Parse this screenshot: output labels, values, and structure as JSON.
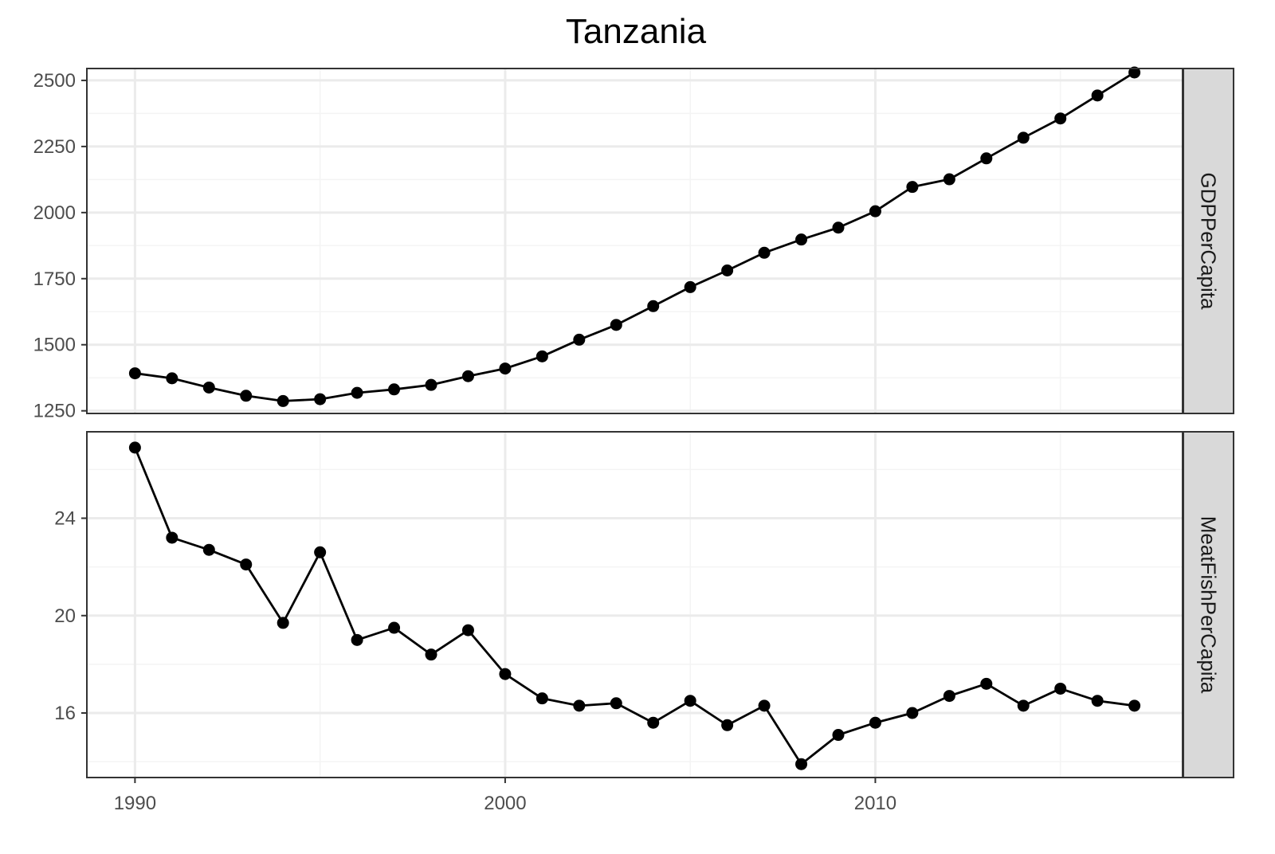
{
  "chart_data": {
    "type": "line",
    "title": "Tanzania",
    "xlabel": "",
    "ylabel": "",
    "x": [
      1990,
      1991,
      1992,
      1993,
      1994,
      1995,
      1996,
      1997,
      1998,
      1999,
      2000,
      2001,
      2002,
      2003,
      2004,
      2005,
      2006,
      2007,
      2008,
      2009,
      2010,
      2011,
      2012,
      2013,
      2014,
      2015,
      2016,
      2017
    ],
    "xlim": [
      1988.7,
      2018.3
    ],
    "x_ticks": [
      "1990",
      "2000",
      "2010"
    ],
    "grid": true,
    "facets": [
      {
        "name": "GDPPerCapita",
        "ylim": [
          1240,
          2545
        ],
        "y_ticks": [
          "1250",
          "1500",
          "1750",
          "2000",
          "2250",
          "2500"
        ],
        "values": [
          1392,
          1373,
          1338,
          1307,
          1287,
          1294,
          1318,
          1331,
          1348,
          1381,
          1410,
          1456,
          1519,
          1575,
          1646,
          1718,
          1781,
          1848,
          1898,
          1943,
          2005,
          2097,
          2126,
          2205,
          2283,
          2356,
          2443,
          2530
        ]
      },
      {
        "name": "MeatFishPerCapita",
        "ylim": [
          13.35,
          27.55
        ],
        "y_ticks": [
          "16",
          "20",
          "24"
        ],
        "values": [
          26.9,
          23.2,
          22.7,
          22.1,
          19.7,
          22.6,
          19.0,
          19.5,
          18.4,
          19.4,
          17.6,
          16.6,
          16.3,
          16.4,
          15.6,
          16.5,
          15.5,
          16.3,
          13.9,
          15.1,
          15.6,
          16.0,
          16.7,
          17.2,
          16.3,
          17.0,
          16.5,
          16.3
        ]
      }
    ],
    "series_color": "#000000",
    "strip_fill": "#d9d9d9",
    "grid_major_color": "#ebebeb",
    "grid_minor_color": "#f4f4f4",
    "panel_border_color": "#333333"
  }
}
